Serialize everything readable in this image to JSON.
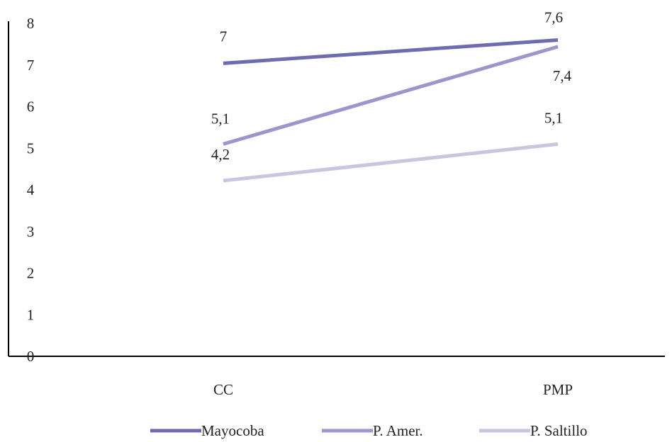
{
  "chart_data": {
    "type": "line",
    "categories": [
      "CC",
      "PMP"
    ],
    "ylim": [
      0,
      8
    ],
    "yticks": [
      0,
      1,
      2,
      3,
      4,
      5,
      6,
      7,
      8
    ],
    "grid": false,
    "legend_position": "bottom",
    "series": [
      {
        "name": "Mayocoba",
        "values": [
          7.04,
          7.6
        ],
        "labels": [
          "7",
          "7,6"
        ],
        "color": "#6f6bb1"
      },
      {
        "name": "P. Amer.",
        "values": [
          5.1,
          7.44
        ],
        "labels": [
          "5,1",
          "7,4"
        ],
        "color": "#9b96cc"
      },
      {
        "name": "P. Saltillo",
        "values": [
          4.22,
          5.1
        ],
        "labels": [
          "4,2",
          "5,1"
        ],
        "color": "#c9c6e2"
      }
    ]
  }
}
